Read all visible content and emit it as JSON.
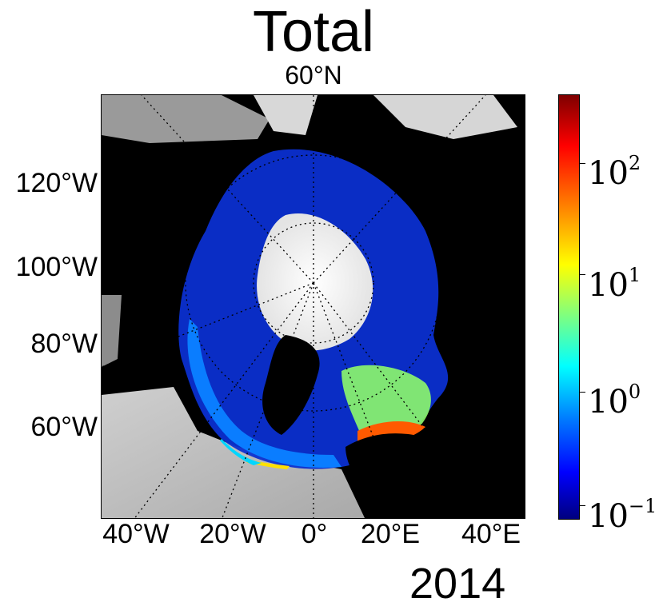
{
  "title": "Total",
  "subtitle": "60°N",
  "year": "2014",
  "map": {
    "projection": "north-polar-stereographic",
    "lon_labels": [
      "40°W",
      "20°W",
      "0°",
      "20°E",
      "40°E"
    ],
    "lat_side_labels": [
      "120°W",
      "100°W",
      "80°W",
      "60°W"
    ],
    "boundary_latitude": "60°N",
    "colormap": "jet",
    "land_color": "#000000",
    "ocean_background_color": "#d9d9d9",
    "ice_color": "#f2f2f2"
  },
  "colorbar": {
    "scale": "log",
    "tick_labels": [
      {
        "base": "10",
        "exp": "2"
      },
      {
        "base": "10",
        "exp": "1"
      },
      {
        "base": "10",
        "exp": "0"
      },
      {
        "base": "10",
        "exp": "−1"
      }
    ],
    "colors": [
      "#00007f",
      "#0000ff",
      "#007fff",
      "#00ffff",
      "#7fff7f",
      "#ffff00",
      "#ff7f00",
      "#ff0000",
      "#7f0000"
    ]
  }
}
